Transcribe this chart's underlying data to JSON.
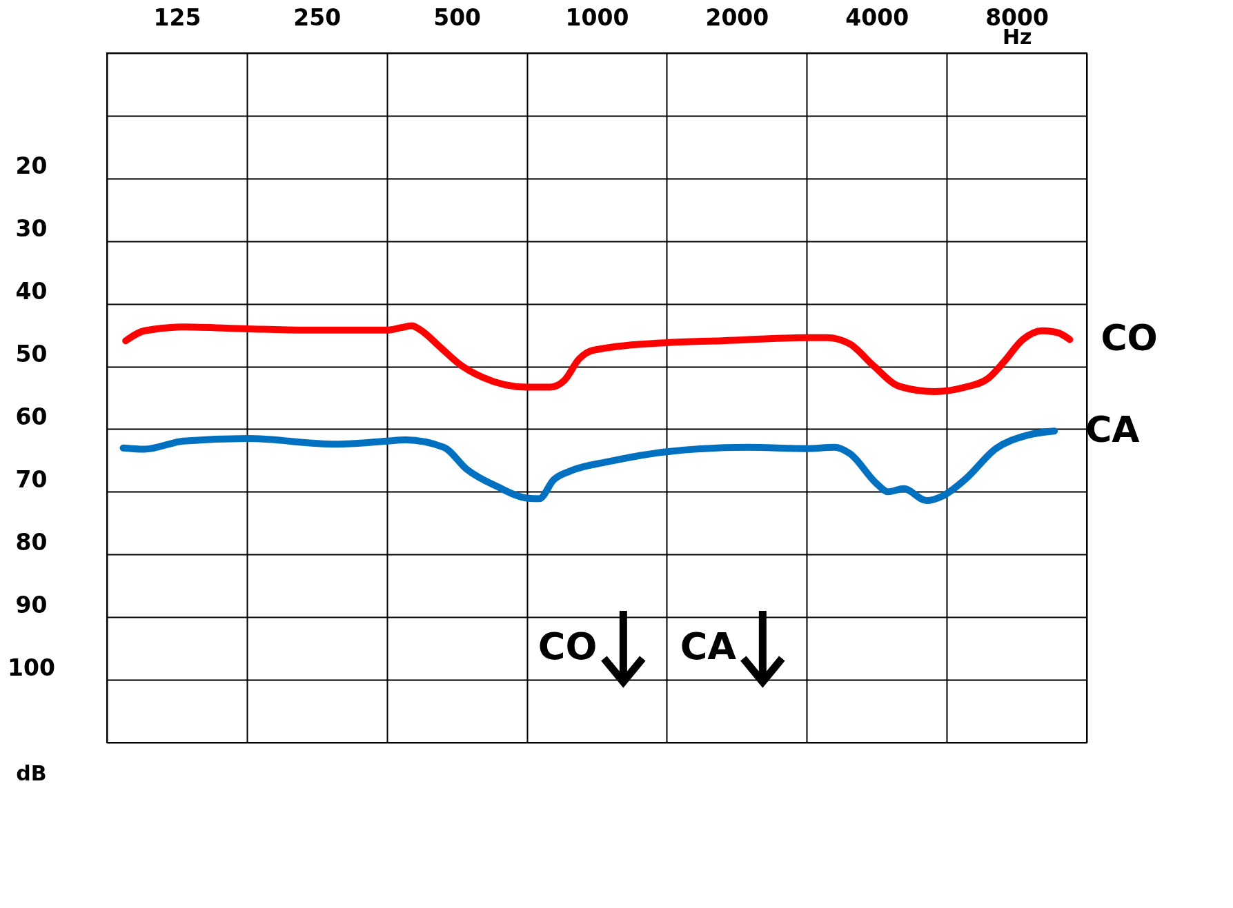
{
  "chart_data": {
    "type": "line",
    "xlabel": "Hz",
    "ylabel": "dB",
    "xlim": [
      88.4,
      11314
    ],
    "ylim": [
      110,
      0
    ],
    "log": "x",
    "grid": true,
    "line_style": "solid",
    "xticks": [
      {
        "value": 88.4,
        "label": null
      },
      125,
      {
        "value": 177,
        "label": null
      },
      250,
      {
        "value": 354,
        "label": null
      },
      500,
      {
        "value": 707,
        "label": null
      },
      1000,
      {
        "value": 1414,
        "label": null
      },
      2000,
      {
        "value": 2828,
        "label": null
      },
      4000,
      {
        "value": 5657,
        "label": null
      },
      8000,
      {
        "value": 11314,
        "label": null
      }
    ],
    "yticks": [
      {
        "value": 0,
        "label": null
      },
      {
        "value": 10,
        "label": null
      },
      20,
      30,
      40,
      50,
      60,
      70,
      80,
      90,
      100,
      {
        "value": 110,
        "label": null
      }
    ],
    "series": [
      {
        "name": "CO",
        "color": "#ff0000",
        "x": [
          97,
          106.5,
          129,
          177,
          237,
          354,
          380,
          400,
          418,
          460,
          506,
          567,
          707,
          793,
          852,
          916,
          984,
          1414,
          1864,
          2828,
          3122,
          3501,
          3925,
          4485,
          5322,
          6200,
          6946,
          7500,
          8248,
          9073,
          9787,
          10403
        ],
        "values": [
          45.9,
          44.3,
          43.7,
          44.0,
          44.2,
          44.2,
          43.8,
          43.5,
          44.2,
          46.9,
          49.6,
          51.7,
          53.3,
          53.3,
          52.2,
          48.8,
          47.4,
          46.2,
          45.9,
          45.4,
          45.4,
          46.4,
          49.8,
          53.2,
          54.0,
          53.3,
          51.9,
          49.3,
          45.7,
          44.3,
          44.6,
          45.7
        ]
      },
      {
        "name": "CA",
        "color": "#0070c0",
        "x": [
          95.8,
          106.5,
          129,
          177,
          275,
          354,
          388,
          469,
          525,
          612,
          707,
          752,
          807,
          883,
          1057,
          1414,
          2103,
          2828,
          3244,
          3501,
          3999,
          4234,
          4570,
          5123,
          5530,
          6200,
          7218,
          8406,
          9640
        ],
        "values": [
          63.0,
          63.2,
          61.9,
          61.5,
          62.4,
          61.9,
          61.7,
          62.9,
          66.4,
          69.2,
          71.0,
          71.1,
          68.1,
          66.6,
          65.2,
          63.6,
          62.9,
          63.1,
          62.9,
          63.9,
          68.7,
          70.0,
          69.5,
          71.4,
          70.7,
          68.0,
          63.1,
          61.0,
          60.3
        ]
      }
    ],
    "annotations": [
      "CO",
      "CA"
    ]
  }
}
